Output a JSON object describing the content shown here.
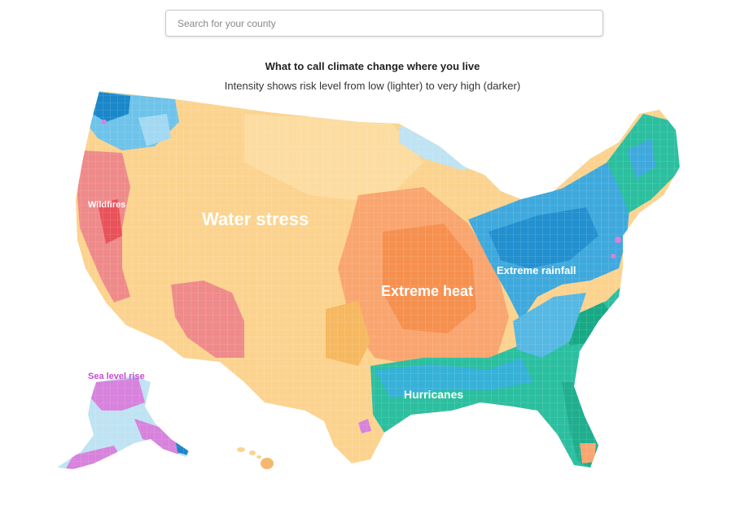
{
  "search": {
    "placeholder": "Search for your county",
    "value": ""
  },
  "header": {
    "title": "What to call climate change where you live",
    "subtitle": "Intensity shows risk level from low (lighter) to very high (darker)"
  },
  "map": {
    "regions": [
      {
        "key": "wildfires",
        "label": "Wildfires",
        "color": "#ef8a8a"
      },
      {
        "key": "water_stress",
        "label": "Water stress",
        "color": "#fbd38f"
      },
      {
        "key": "extreme_heat",
        "label": "Extreme heat",
        "color": "#f9a56f"
      },
      {
        "key": "extreme_rainfall",
        "label": "Extreme rainfall",
        "color": "#3fa9dd"
      },
      {
        "key": "hurricanes",
        "label": "Hurricanes",
        "color": "#2bbf9f"
      },
      {
        "key": "sea_level_rise",
        "label": "Sea level rise",
        "color": "#d782dc"
      }
    ],
    "scale_note": "low (lighter) to very high (darker)"
  }
}
